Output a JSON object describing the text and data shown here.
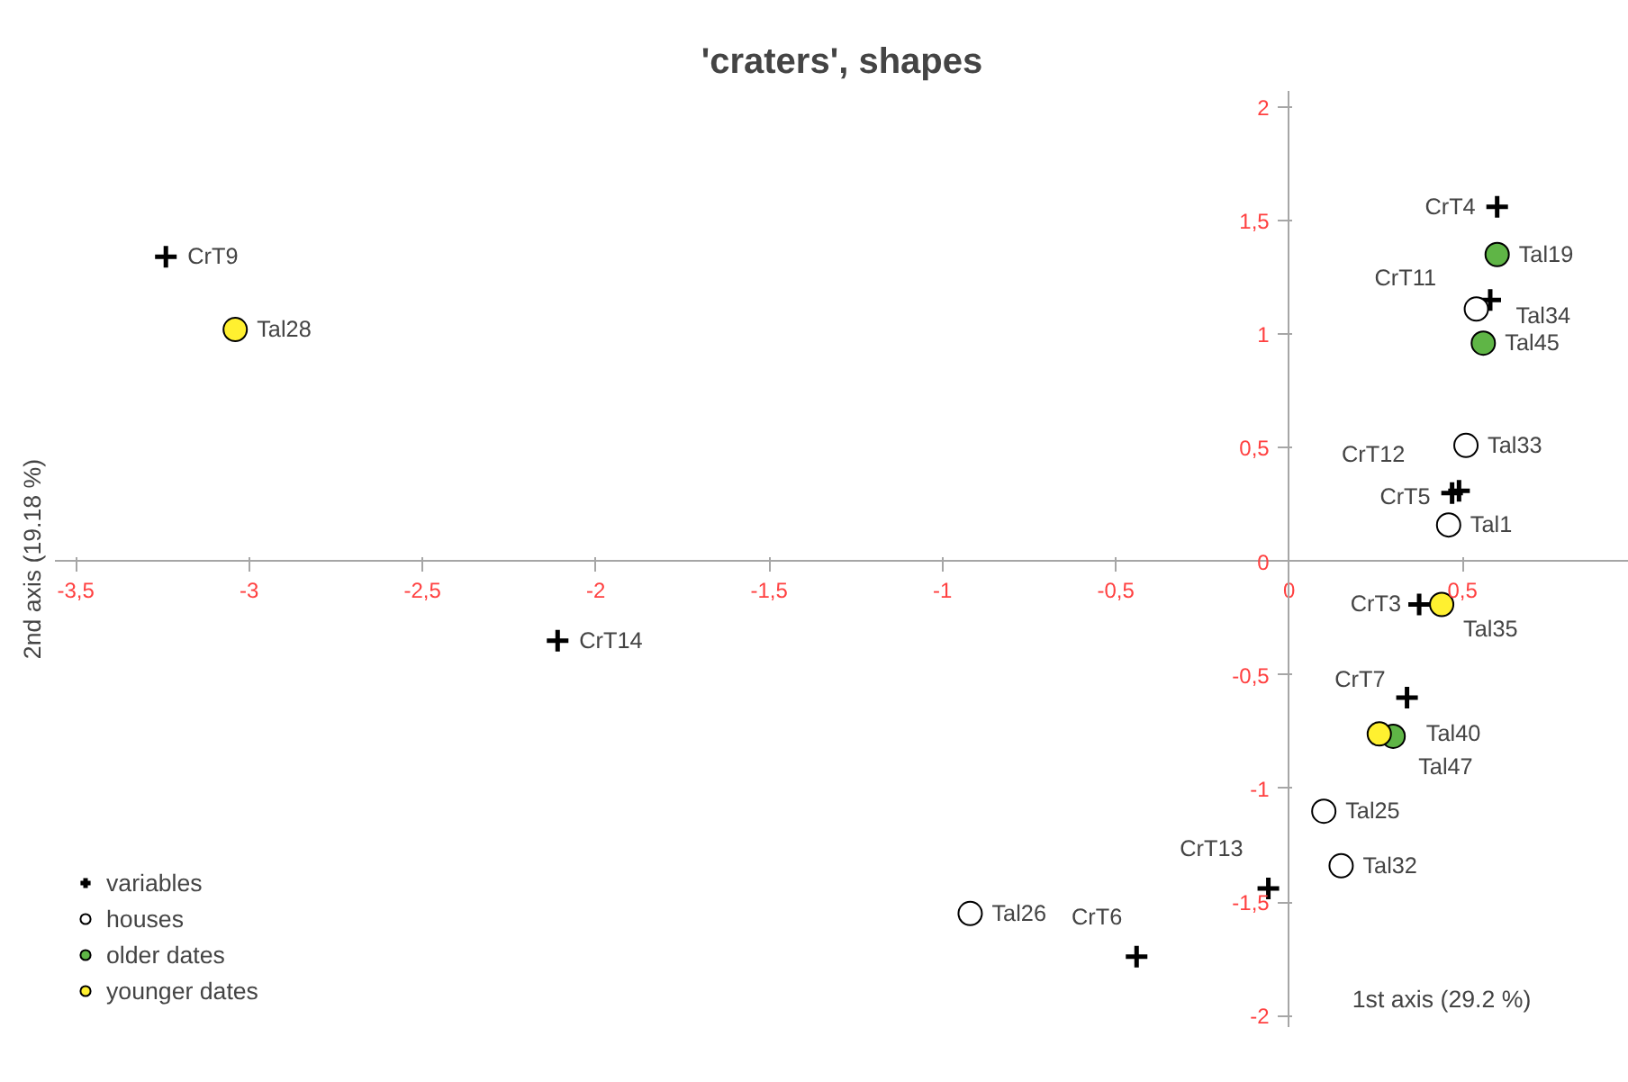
{
  "chart_data": {
    "type": "scatter",
    "title": "'craters', shapes",
    "xlabel": "1st axis (29.2 %)",
    "ylabel": "2nd axis (19.18 %)",
    "xlim": [
      -3.56,
      0.98
    ],
    "ylim": [
      -2.05,
      2.07
    ],
    "xticks": [
      {
        "value": -3.5,
        "label": "-3,5"
      },
      -3,
      {
        "value": -2.5,
        "label": "-2,5"
      },
      -2,
      {
        "value": -1.5,
        "label": "-1,5"
      },
      -1,
      {
        "value": -0.5,
        "label": "-0,5"
      },
      0,
      {
        "value": 0.5,
        "label": "0,5"
      }
    ],
    "yticks": [
      -2,
      {
        "value": -1.5,
        "label": "-1,5"
      },
      -1,
      {
        "value": -0.5,
        "label": "-0,5"
      },
      0,
      {
        "value": 0.5,
        "label": "0,5"
      },
      1,
      {
        "value": 1.5,
        "label": "1,5"
      },
      2
    ],
    "grid": false,
    "legend": "bottom left",
    "series": [
      {
        "name": "variables",
        "color": "#000000",
        "marker": "cross",
        "x": [
          -3.24,
          -2.11,
          0.6,
          0.58,
          0.49,
          0.47,
          0.375,
          0.34,
          -0.06,
          -0.44
        ],
        "values": [
          1.34,
          -0.35,
          1.56,
          1.15,
          0.31,
          0.3,
          -0.19,
          -0.6,
          -1.44,
          -1.74
        ],
        "value_labels": [
          "CrT9",
          "CrT14",
          "CrT4",
          "CrT11",
          "CrT12",
          "CrT5",
          "CrT3",
          "CrT7",
          "CrT13",
          "CrT6"
        ]
      },
      {
        "name": "houses",
        "color": "#ffffff",
        "marker": "circle",
        "x": [
          0.54,
          0.51,
          0.46,
          0.1,
          0.15,
          -0.92
        ],
        "values": [
          1.11,
          0.51,
          0.16,
          -1.1,
          -1.34,
          -1.55
        ],
        "value_labels": [
          "Tal34",
          "Tal33",
          "Tal1",
          "Tal25",
          "Tal32",
          "Tal26"
        ]
      },
      {
        "name": "older dates",
        "color": "#5fb546",
        "marker": "circle",
        "x": [
          0.6,
          0.56,
          0.3
        ],
        "values": [
          1.35,
          0.96,
          -0.77
        ],
        "value_labels": [
          "Tal19",
          "Tal45",
          "Tal47"
        ]
      },
      {
        "name": "younger dates",
        "color": "#fff030",
        "marker": "circle",
        "x": [
          -3.04,
          0.44,
          0.26
        ],
        "values": [
          1.02,
          -0.19,
          -0.76
        ],
        "value_labels": [
          "Tal28",
          "Tal35",
          "Tal40"
        ]
      }
    ]
  }
}
